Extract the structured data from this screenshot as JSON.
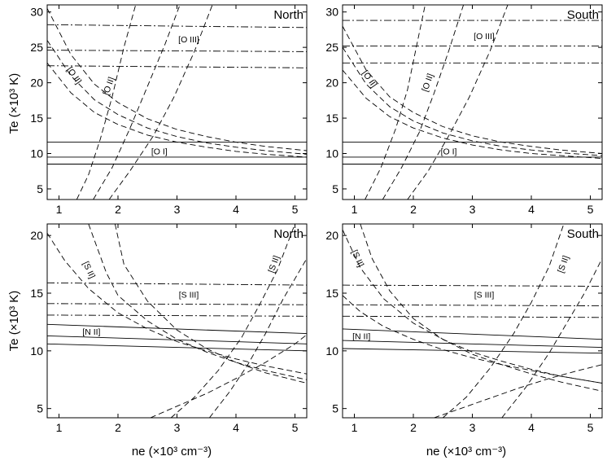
{
  "figure": {
    "ylabel_top": "Te (×10³ K)",
    "ylabel_bottom": "Te (×10³ K)",
    "xlabel_left": "ne (×10³ cm⁻³)",
    "xlabel_right": "ne (×10³ cm⁻³)"
  },
  "chart_data": [
    {
      "type": "line",
      "title": "North",
      "xlim": [
        0.8,
        5.2
      ],
      "ylim": [
        3.5,
        31
      ],
      "xticks": [
        1,
        2,
        3,
        4,
        5
      ],
      "yticks": [
        5,
        10,
        15,
        20,
        25,
        30
      ],
      "grid": false,
      "labels": [
        {
          "text": "[O III]",
          "x": 3.2,
          "y": 26.0,
          "rotate": 0
        },
        {
          "text": "[O II]",
          "x": 1.25,
          "y": 21.0,
          "rotate": 55
        },
        {
          "text": "[O II]",
          "x": 1.85,
          "y": 19.5,
          "rotate": -70
        },
        {
          "text": "[O I]",
          "x": 2.7,
          "y": 10.2,
          "rotate": 0
        }
      ],
      "series": [
        {
          "style": "dashdot",
          "x": [
            0.8,
            5.2
          ],
          "y": [
            28.2,
            27.8
          ]
        },
        {
          "style": "dashdot",
          "x": [
            0.8,
            5.2
          ],
          "y": [
            24.6,
            24.4
          ]
        },
        {
          "style": "dashdot",
          "x": [
            0.8,
            5.2
          ],
          "y": [
            22.4,
            22.1
          ]
        },
        {
          "style": "dashed",
          "x": [
            0.8,
            1.2,
            1.6,
            2.0,
            2.5,
            3.0,
            3.5,
            4.0,
            4.5,
            5.2
          ],
          "y": [
            30.5,
            24.0,
            19.8,
            17.2,
            14.9,
            13.4,
            12.4,
            11.6,
            11.0,
            10.4
          ]
        },
        {
          "style": "dashed",
          "x": [
            0.8,
            1.2,
            1.6,
            2.0,
            2.5,
            3.0,
            3.5,
            4.0,
            4.5,
            5.2
          ],
          "y": [
            26.0,
            21.0,
            17.6,
            15.5,
            13.6,
            12.4,
            11.5,
            10.9,
            10.4,
            9.9
          ]
        },
        {
          "style": "dashed",
          "x": [
            0.8,
            1.2,
            1.6,
            2.0,
            2.5,
            3.0,
            3.5,
            4.0,
            4.5,
            5.2
          ],
          "y": [
            22.8,
            18.6,
            15.8,
            14.1,
            12.6,
            11.6,
            10.9,
            10.3,
            9.9,
            9.5
          ]
        },
        {
          "style": "dashed",
          "x": [
            1.3,
            1.5,
            1.7,
            1.9,
            2.1,
            2.3
          ],
          "y": [
            3.5,
            7.0,
            12.0,
            18.0,
            25.0,
            31.0
          ]
        },
        {
          "style": "dashed",
          "x": [
            1.58,
            1.9,
            2.2,
            2.5,
            2.8,
            3.05
          ],
          "y": [
            3.5,
            8.0,
            13.5,
            19.5,
            25.5,
            31.0
          ]
        },
        {
          "style": "dashed",
          "x": [
            1.85,
            2.2,
            2.6,
            2.95,
            3.3,
            3.6
          ],
          "y": [
            3.5,
            7.5,
            12.5,
            18.0,
            24.5,
            31.0
          ]
        },
        {
          "style": "solid",
          "x": [
            0.8,
            5.2
          ],
          "y": [
            11.6,
            11.6
          ]
        },
        {
          "style": "solid",
          "x": [
            0.8,
            5.2
          ],
          "y": [
            9.5,
            9.5
          ]
        },
        {
          "style": "solid",
          "x": [
            0.8,
            5.2
          ],
          "y": [
            8.5,
            8.5
          ]
        }
      ]
    },
    {
      "type": "line",
      "title": "South",
      "xlim": [
        0.8,
        5.2
      ],
      "ylim": [
        3.5,
        31
      ],
      "xticks": [
        1,
        2,
        3,
        4,
        5
      ],
      "yticks": [
        5,
        10,
        15,
        20,
        25,
        30
      ],
      "grid": false,
      "labels": [
        {
          "text": "[O III]",
          "x": 3.2,
          "y": 26.5,
          "rotate": 0
        },
        {
          "text": "[O II]",
          "x": 1.25,
          "y": 20.5,
          "rotate": 55
        },
        {
          "text": "[O II]",
          "x": 2.25,
          "y": 20.0,
          "rotate": -70
        },
        {
          "text": "[O I]",
          "x": 2.6,
          "y": 10.2,
          "rotate": 0
        }
      ],
      "series": [
        {
          "style": "dashdot",
          "x": [
            0.8,
            5.2
          ],
          "y": [
            28.8,
            28.8
          ]
        },
        {
          "style": "dashdot",
          "x": [
            0.8,
            5.2
          ],
          "y": [
            25.2,
            25.2
          ]
        },
        {
          "style": "dashdot",
          "x": [
            0.8,
            5.2
          ],
          "y": [
            22.8,
            22.8
          ]
        },
        {
          "style": "dashed",
          "x": [
            0.8,
            1.2,
            1.6,
            2.0,
            2.5,
            3.0,
            3.5,
            4.0,
            4.5,
            5.2
          ],
          "y": [
            28.0,
            21.8,
            18.0,
            15.8,
            13.8,
            12.5,
            11.6,
            11.0,
            10.5,
            10.0
          ]
        },
        {
          "style": "dashed",
          "x": [
            0.8,
            1.2,
            1.6,
            2.0,
            2.5,
            3.0,
            3.5,
            4.0,
            4.5,
            5.2
          ],
          "y": [
            25.0,
            19.8,
            16.6,
            14.6,
            12.9,
            11.8,
            11.0,
            10.5,
            10.1,
            9.7
          ]
        },
        {
          "style": "dashed",
          "x": [
            0.8,
            1.2,
            1.6,
            2.0,
            2.5,
            3.0,
            3.5,
            4.0,
            4.5,
            5.2
          ],
          "y": [
            21.8,
            17.8,
            15.2,
            13.6,
            12.2,
            11.2,
            10.5,
            10.0,
            9.7,
            9.3
          ]
        },
        {
          "style": "dashed",
          "x": [
            1.18,
            1.45,
            1.7,
            1.9,
            2.05,
            2.2
          ],
          "y": [
            3.5,
            8.0,
            13.5,
            19.0,
            25.0,
            31.0
          ]
        },
        {
          "style": "dashed",
          "x": [
            1.48,
            1.8,
            2.1,
            2.35,
            2.6,
            2.85
          ],
          "y": [
            3.5,
            8.0,
            13.0,
            18.5,
            24.5,
            31.0
          ]
        },
        {
          "style": "dashed",
          "x": [
            1.9,
            2.25,
            2.6,
            2.95,
            3.3,
            3.6
          ],
          "y": [
            3.5,
            7.5,
            12.5,
            18.0,
            24.5,
            31.0
          ]
        },
        {
          "style": "solid",
          "x": [
            0.8,
            5.2
          ],
          "y": [
            11.6,
            11.6
          ]
        },
        {
          "style": "solid",
          "x": [
            0.8,
            5.2
          ],
          "y": [
            9.5,
            9.5
          ]
        },
        {
          "style": "solid",
          "x": [
            0.8,
            5.2
          ],
          "y": [
            8.5,
            8.5
          ]
        }
      ]
    },
    {
      "type": "line",
      "title": "North",
      "xlim": [
        0.8,
        5.2
      ],
      "ylim": [
        4.2,
        21
      ],
      "xticks": [
        1,
        2,
        3,
        4,
        5
      ],
      "yticks": [
        5,
        10,
        15,
        20
      ],
      "grid": false,
      "labels": [
        {
          "text": "[S II]",
          "x": 1.5,
          "y": 17.0,
          "rotate": 65
        },
        {
          "text": "[S II]",
          "x": 4.65,
          "y": 17.5,
          "rotate": -70
        },
        {
          "text": "[S III]",
          "x": 3.2,
          "y": 14.8,
          "rotate": 0
        },
        {
          "text": "[N II]",
          "x": 1.55,
          "y": 11.6,
          "rotate": 0
        }
      ],
      "series": [
        {
          "style": "dashdot",
          "x": [
            0.8,
            5.2
          ],
          "y": [
            15.9,
            15.7
          ]
        },
        {
          "style": "dashdot",
          "x": [
            0.8,
            5.2
          ],
          "y": [
            14.1,
            14.0
          ]
        },
        {
          "style": "dashdot",
          "x": [
            0.8,
            5.2
          ],
          "y": [
            13.1,
            13.0
          ]
        },
        {
          "style": "solid",
          "x": [
            0.8,
            5.2
          ],
          "y": [
            12.3,
            11.5
          ]
        },
        {
          "style": "solid",
          "x": [
            0.8,
            5.2
          ],
          "y": [
            11.3,
            10.6
          ]
        },
        {
          "style": "solid",
          "x": [
            0.8,
            5.2
          ],
          "y": [
            10.6,
            10.0
          ]
        },
        {
          "style": "dashed",
          "x": [
            0.8,
            1.1,
            1.5,
            2.0,
            2.5,
            3.0,
            3.5,
            4.0,
            4.5,
            5.2
          ],
          "y": [
            20.2,
            17.8,
            15.4,
            13.3,
            11.9,
            10.8,
            10.0,
            9.3,
            8.7,
            8.0
          ]
        },
        {
          "style": "dashed",
          "x": [
            1.5,
            1.8,
            2.0,
            2.5,
            3.0,
            3.5,
            4.0,
            4.5,
            5.2
          ],
          "y": [
            21.0,
            16.8,
            14.8,
            12.6,
            11.0,
            9.9,
            9.0,
            8.3,
            7.5
          ]
        },
        {
          "style": "dashed",
          "x": [
            1.95,
            2.1,
            2.5,
            3.0,
            3.5,
            4.0,
            4.5,
            5.2
          ],
          "y": [
            21.0,
            17.5,
            14.3,
            11.8,
            10.2,
            9.0,
            8.1,
            7.2
          ]
        },
        {
          "style": "dashed",
          "x": [
            2.9,
            3.3,
            3.7,
            4.1,
            4.4,
            4.7,
            5.0
          ],
          "y": [
            4.2,
            6.0,
            8.3,
            11.2,
            14.0,
            17.0,
            21.0
          ]
        },
        {
          "style": "dashed",
          "x": [
            3.55,
            3.9,
            4.2,
            4.5,
            4.8,
            5.2
          ],
          "y": [
            4.2,
            6.5,
            8.8,
            11.5,
            14.5,
            18.0
          ]
        },
        {
          "style": "dashed",
          "x": [
            2.55,
            3.0,
            3.5,
            4.0,
            4.5,
            5.0,
            5.2
          ],
          "y": [
            4.2,
            5.2,
            6.3,
            7.6,
            9.0,
            10.6,
            11.4
          ]
        }
      ]
    },
    {
      "type": "line",
      "title": "South",
      "xlim": [
        0.8,
        5.2
      ],
      "ylim": [
        4.2,
        21
      ],
      "xticks": [
        1,
        2,
        3,
        4,
        5
      ],
      "yticks": [
        5,
        10,
        15,
        20
      ],
      "grid": false,
      "labels": [
        {
          "text": "[S II]",
          "x": 1.05,
          "y": 18.0,
          "rotate": 65
        },
        {
          "text": "[S II]",
          "x": 4.55,
          "y": 17.5,
          "rotate": -70
        },
        {
          "text": "[S III]",
          "x": 3.2,
          "y": 14.8,
          "rotate": 0
        },
        {
          "text": "[N II]",
          "x": 1.12,
          "y": 11.2,
          "rotate": 0
        }
      ],
      "series": [
        {
          "style": "dashdot",
          "x": [
            0.8,
            5.2
          ],
          "y": [
            15.7,
            15.6
          ]
        },
        {
          "style": "dashdot",
          "x": [
            0.8,
            5.2
          ],
          "y": [
            14.0,
            13.9
          ]
        },
        {
          "style": "dashdot",
          "x": [
            0.8,
            5.2
          ],
          "y": [
            13.0,
            12.9
          ]
        },
        {
          "style": "solid",
          "x": [
            0.8,
            5.2
          ],
          "y": [
            11.9,
            11.0
          ]
        },
        {
          "style": "solid",
          "x": [
            0.8,
            5.2
          ],
          "y": [
            10.9,
            10.3
          ]
        },
        {
          "style": "solid",
          "x": [
            0.8,
            5.2
          ],
          "y": [
            10.2,
            9.8
          ]
        },
        {
          "style": "dashed",
          "x": [
            0.8,
            1.1,
            1.5,
            2.0,
            2.5,
            3.0,
            3.5,
            4.0,
            4.5,
            5.2
          ],
          "y": [
            14.8,
            13.4,
            12.1,
            11.0,
            10.1,
            9.4,
            8.8,
            8.3,
            7.8,
            7.2
          ]
        },
        {
          "style": "dashed",
          "x": [
            0.8,
            1.1,
            1.5,
            2.0,
            2.5,
            3.0,
            3.5,
            4.0,
            4.5,
            5.2
          ],
          "y": [
            20.5,
            17.2,
            14.5,
            12.4,
            11.0,
            9.9,
            9.1,
            8.4,
            7.8,
            7.2
          ]
        },
        {
          "style": "dashed",
          "x": [
            1.1,
            1.3,
            1.6,
            2.0,
            2.5,
            3.0,
            3.5,
            4.0,
            4.5,
            5.2
          ],
          "y": [
            21.0,
            18.0,
            15.2,
            12.8,
            11.0,
            9.7,
            8.8,
            8.0,
            7.3,
            6.5
          ]
        },
        {
          "style": "dashed",
          "x": [
            2.5,
            2.9,
            3.3,
            3.7,
            4.0,
            4.3,
            4.55
          ],
          "y": [
            4.2,
            6.0,
            8.5,
            11.5,
            14.2,
            17.3,
            21.0
          ]
        },
        {
          "style": "dashed",
          "x": [
            3.5,
            3.9,
            4.3,
            4.6,
            4.9,
            5.2
          ],
          "y": [
            4.2,
            6.8,
            9.8,
            12.4,
            15.0,
            18.0
          ]
        },
        {
          "style": "dashed",
          "x": [
            2.35,
            2.8,
            3.3,
            3.8,
            4.3,
            4.8,
            5.2
          ],
          "y": [
            4.2,
            5.0,
            5.9,
            6.8,
            7.6,
            8.3,
            8.8
          ]
        }
      ]
    }
  ]
}
